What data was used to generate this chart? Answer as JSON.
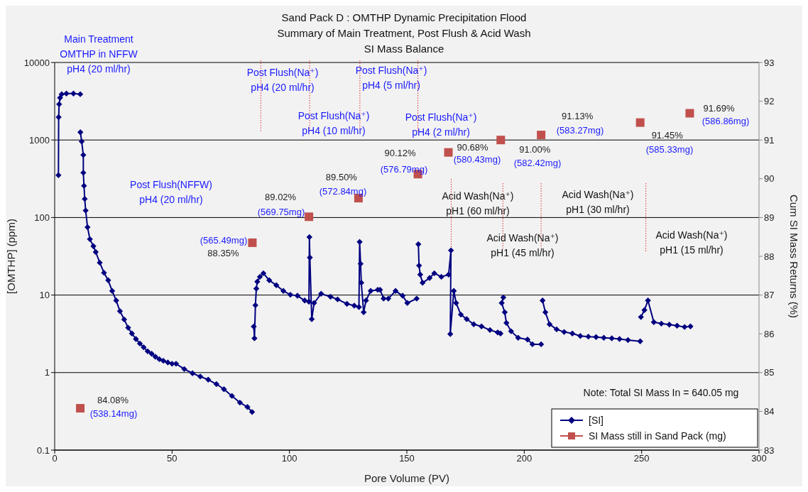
{
  "chart_data": {
    "type": "line",
    "title": "Sand Pack D : OMTHP Dynamic Precipitation Flood",
    "subtitle": "Summary of Main Treatment, Post Flush & Acid Wash\nSI Mass Balance",
    "xlabel": "Pore Volume (PV)",
    "ylabel": "[OMTHP] (ppm)",
    "y2label": "Cum SI Mass Returns (%)",
    "xlim": [
      0,
      300
    ],
    "xticks": [
      0,
      50,
      100,
      150,
      200,
      250,
      300
    ],
    "ylim": [
      0.1,
      10000
    ],
    "yticks": [
      0.1,
      1,
      10,
      100,
      1000,
      10000
    ],
    "log": true,
    "y2lim": [
      83,
      93
    ],
    "y2ticks": [
      83,
      84,
      85,
      86,
      87,
      88,
      89,
      90,
      91,
      92,
      93
    ],
    "grid": "y",
    "legend": "bottom right",
    "line_style": "solid",
    "series": [
      {
        "name": "[SI]",
        "color": "#000080",
        "marker": "diamond",
        "x": [
          1.6,
          1.7,
          1.9,
          2.3,
          3,
          5,
          8,
          10.9,
          10.92,
          10.95,
          11.5,
          12.2,
          12.2,
          12.5,
          12.8,
          13.2,
          14,
          15,
          16.5,
          17.5,
          19.2,
          21,
          22.8,
          24.5,
          26.2,
          27.8,
          29.6,
          31.3,
          32.9,
          34.6,
          36.3,
          37.9,
          39.6,
          41.3,
          42.9,
          44.6,
          46.3,
          48.2,
          50,
          51.7,
          55.2,
          58.7,
          62,
          65.4,
          68.9,
          72.1,
          75.5,
          78.9,
          82.1,
          84.1,
          84.5,
          84.8,
          85.1,
          85.5,
          85.9,
          86.3,
          87.4,
          88.9,
          91.4,
          94.4,
          97.4,
          100.4,
          103.4,
          106.5,
          108.3,
          108.5,
          108.7,
          109.5,
          110.5,
          113.5,
          117.5,
          120.5,
          124.5,
          127.6,
          129.6,
          129.9,
          130.3,
          130.6,
          131.6,
          132.6,
          134.6,
          137.6,
          138.6,
          140.1,
          142.1,
          145.2,
          148.2,
          150.2,
          154.2,
          154.5,
          154.9,
          155.2,
          155.7,
          156.7,
          159.7,
          161.7,
          164.7,
          167.8,
          168.8,
          168.5,
          170,
          171,
          173,
          175.5,
          178.5,
          181.8,
          185.4,
          188.7,
          189.9,
          190.5,
          191.1,
          190.4,
          191.7,
          192.4,
          194.4,
          197.4,
          201.4,
          203.5,
          207.2,
          207.5,
          207.8,
          209,
          210.8,
          213.8,
          217,
          220.5,
          223.9,
          227.3,
          230.6,
          233.9,
          237.3,
          240.6,
          244.2,
          249.4,
          249.5,
          249.7,
          251.2,
          252.7,
          255.2,
          258.4,
          261.8,
          265.1,
          268.3,
          270.8
        ],
        "values": [
          352,
          1970,
          2890,
          3500,
          3900,
          3980,
          3980,
          3900,
          null,
          1260,
          956,
          640,
          378,
          257,
          174,
          123,
          75,
          52.6,
          42.7,
          35.9,
          26.2,
          19.4,
          15.5,
          11.3,
          8.5,
          6.2,
          4.85,
          3.79,
          3.19,
          2.71,
          2.37,
          2.12,
          1.88,
          1.75,
          1.6,
          1.49,
          1.42,
          1.35,
          1.3,
          1.3,
          1.11,
          0.98,
          0.89,
          0.81,
          0.71,
          0.61,
          0.5,
          0.41,
          0.36,
          0.31,
          null,
          3.93,
          2.77,
          7.4,
          12.1,
          14.9,
          17.2,
          19.1,
          15.5,
          13.4,
          11.3,
          10.1,
          9.8,
          8.5,
          8.2,
          56,
          30.5,
          4.9,
          7.9,
          10.4,
          9.5,
          8.8,
          7.7,
          7.3,
          7.0,
          48.5,
          25.3,
          14.4,
          6.0,
          8.5,
          11.3,
          11.7,
          11.7,
          9.0,
          9.0,
          11.3,
          9.8,
          7.9,
          9.0,
          null,
          45.3,
          24,
          18.4,
          14.4,
          16.6,
          19.1,
          17.2,
          18.4,
          37.7,
          3.14,
          11.3,
          7.9,
          5.6,
          4.9,
          4.2,
          3.94,
          3.54,
          3.3,
          3.19,
          null,
          9.3,
          7.9,
          6.0,
          4.37,
          3.41,
          2.81,
          2.67,
          2.32,
          2.32,
          null,
          8.5,
          6.0,
          4.2,
          3.61,
          3.34,
          3.19,
          2.97,
          2.91,
          2.87,
          2.81,
          2.77,
          2.71,
          2.63,
          2.53,
          null,
          5.2,
          6.4,
          8.5,
          4.47,
          4.28,
          4.16,
          4.02,
          3.87,
          3.94
        ]
      },
      {
        "name": "SI Mass still in Sand Pack (mg)",
        "type": "scatter",
        "axis": "y2",
        "color": "#c0504d",
        "marker": "square",
        "x": [
          10.9,
          84.2,
          108.3,
          129.4,
          154.7,
          167.7,
          190,
          207.2,
          249.4,
          270.5
        ],
        "values": [
          84.08,
          88.35,
          89.02,
          89.5,
          90.12,
          90.68,
          91.0,
          91.13,
          91.45,
          91.69
        ],
        "value_labels": [
          "84.08%",
          "88.35%",
          "89.02%",
          "89.50%",
          "90.12%",
          "90.68%",
          "91.00%",
          "91.13%",
          "91.45%",
          "91.69%"
        ]
      }
    ],
    "ref_lines": [
      {
        "axis": "x",
        "value": 87.8,
        "color": "#e03030",
        "line_style": "dotted"
      },
      {
        "axis": "x",
        "value": 108.6,
        "color": "#e03030",
        "line_style": "dotted"
      },
      {
        "axis": "x",
        "value": 130,
        "color": "#e03030",
        "line_style": "dotted"
      },
      {
        "axis": "x",
        "value": 154.7,
        "color": "#e03030",
        "line_style": "dotted"
      },
      {
        "axis": "x",
        "value": 168.9,
        "color": "#e03030",
        "line_style": "dotted"
      },
      {
        "axis": "x",
        "value": 190.9,
        "color": "#e03030",
        "line_style": "dotted"
      },
      {
        "axis": "x",
        "value": 207.2,
        "color": "#e03030",
        "line_style": "dotted"
      },
      {
        "axis": "x",
        "value": 251.8,
        "color": "#e03030",
        "line_style": "dotted"
      }
    ],
    "annotations": [
      "Main Treatment\nOMTHP in NFFW\npH4 (20 ml/hr)",
      "Post Flush(NFFW)\npH4 (20 ml/hr)",
      "Post Flush(Na⁺)\npH4 (20 ml/hr)",
      "Post Flush(Na⁺)\npH4 (10 ml/hr)",
      "Post Flush(Na⁺)\npH4 (5 ml/hr)",
      "Post Flush(Na⁺)\npH4 (2 ml/hr)",
      "Acid Wash(Na⁺)\npH1 (60 ml/hr)",
      "Acid Wash(Na⁺)\npH1 (45 ml/hr)",
      "Acid Wash(Na⁺)\npH1 (30 ml/hr)",
      "Acid Wash(Na⁺)\npH1 (15 ml/hr)",
      "Note: Total SI Mass In = 640.05 mg",
      "(538.14mg)",
      "(565.49mg)",
      "(569.75mg)",
      "(572.84mg)",
      "(576.79mg)",
      "(580.43mg)",
      "(582.42mg)",
      "(583.27mg)",
      "(585.33mg)",
      "(586.86mg)"
    ]
  }
}
